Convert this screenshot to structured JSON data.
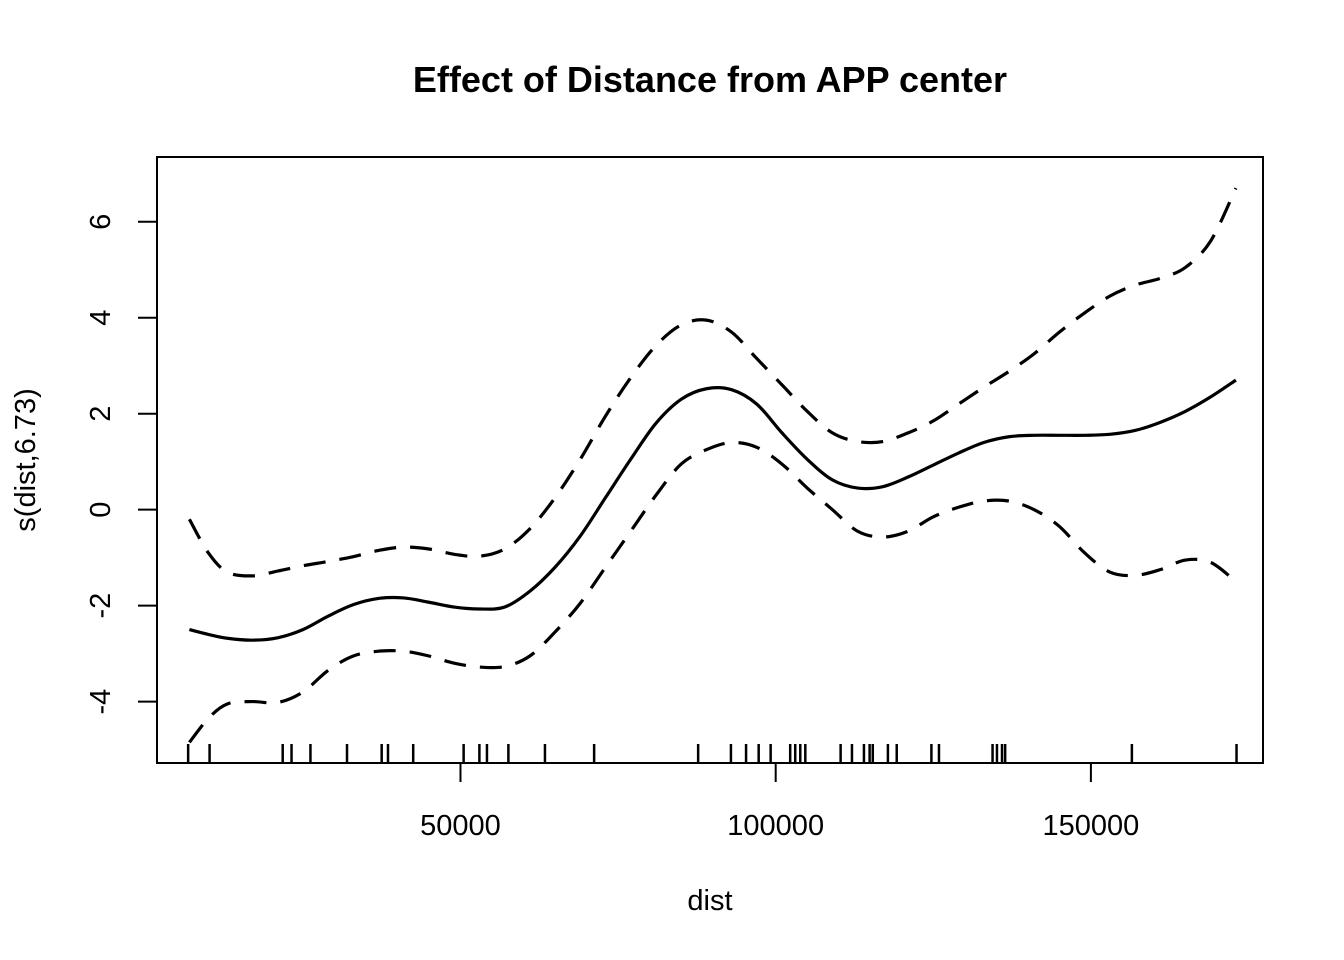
{
  "chart_data": {
    "type": "line",
    "title": "Effect of Distance from APP center",
    "xlabel": "dist",
    "ylabel": "s(dist,6.73)",
    "xlim": [
      1860,
      177300
    ],
    "ylim": [
      -5.28,
      7.35
    ],
    "x_ticks": [
      50000,
      100000,
      150000
    ],
    "x_tick_labels": [
      "50000",
      "100000",
      "150000"
    ],
    "y_ticks": [
      -4,
      -2,
      0,
      2,
      4,
      6
    ],
    "y_tick_labels": [
      "-4",
      "-2",
      "0",
      "2",
      "4",
      "6"
    ],
    "grid": false,
    "legend": "none",
    "series": [
      {
        "role": "estimate",
        "style": "solid",
        "x": [
          7000,
          10000,
          13000,
          17000,
          21000,
          25000,
          29000,
          33000,
          37000,
          41000,
          45000,
          49000,
          53000,
          57000,
          61000,
          65000,
          69000,
          73000,
          77000,
          81000,
          85000,
          89000,
          93000,
          97000,
          101000,
          105000,
          109000,
          113000,
          117000,
          121000,
          125000,
          129000,
          133000,
          137000,
          141000,
          145000,
          149000,
          153000,
          157000,
          161000,
          165000,
          169000,
          173000
        ],
        "y": [
          -2.5,
          -2.6,
          -2.68,
          -2.72,
          -2.67,
          -2.5,
          -2.22,
          -1.98,
          -1.85,
          -1.84,
          -1.93,
          -2.03,
          -2.07,
          -2.03,
          -1.7,
          -1.2,
          -0.55,
          0.25,
          1.05,
          1.8,
          2.3,
          2.52,
          2.5,
          2.2,
          1.6,
          1.05,
          0.62,
          0.45,
          0.48,
          0.68,
          0.93,
          1.18,
          1.4,
          1.52,
          1.55,
          1.55,
          1.55,
          1.57,
          1.65,
          1.82,
          2.05,
          2.35,
          2.7
        ]
      },
      {
        "role": "upper",
        "style": "dashed",
        "x": [
          7000,
          10000,
          13000,
          17000,
          21000,
          25000,
          29000,
          33000,
          37000,
          41000,
          45000,
          49000,
          53000,
          57000,
          61000,
          65000,
          69000,
          73000,
          77000,
          81000,
          85000,
          89000,
          93000,
          97000,
          101000,
          105000,
          109000,
          113000,
          117000,
          121000,
          125000,
          129000,
          133000,
          137000,
          141000,
          145000,
          149000,
          153000,
          157000,
          161000,
          165000,
          169000,
          173000
        ],
        "y": [
          -0.2,
          -0.9,
          -1.3,
          -1.38,
          -1.28,
          -1.17,
          -1.08,
          -0.98,
          -0.85,
          -0.78,
          -0.82,
          -0.93,
          -0.97,
          -0.82,
          -0.4,
          0.25,
          1.05,
          1.95,
          2.75,
          3.42,
          3.85,
          3.95,
          3.7,
          3.15,
          2.6,
          2.05,
          1.6,
          1.42,
          1.42,
          1.6,
          1.85,
          2.2,
          2.55,
          2.88,
          3.25,
          3.7,
          4.1,
          4.45,
          4.68,
          4.82,
          5.05,
          5.6,
          6.7
        ]
      },
      {
        "role": "lower",
        "style": "dashed",
        "x": [
          7000,
          10000,
          13000,
          17000,
          21000,
          25000,
          29000,
          33000,
          37000,
          41000,
          45000,
          49000,
          53000,
          57000,
          61000,
          65000,
          69000,
          73000,
          77000,
          81000,
          85000,
          89000,
          93000,
          97000,
          101000,
          105000,
          109000,
          113000,
          117000,
          121000,
          125000,
          129000,
          133000,
          137000,
          141000,
          145000,
          149000,
          153000,
          157000,
          161000,
          165000,
          169000,
          173000
        ],
        "y": [
          -4.85,
          -4.35,
          -4.05,
          -4.0,
          -4.02,
          -3.8,
          -3.35,
          -3.05,
          -2.95,
          -2.95,
          -3.05,
          -3.2,
          -3.28,
          -3.27,
          -3.05,
          -2.55,
          -1.95,
          -1.2,
          -0.45,
          0.3,
          0.95,
          1.25,
          1.4,
          1.3,
          0.95,
          0.45,
          0.0,
          -0.45,
          -0.57,
          -0.45,
          -0.15,
          0.05,
          0.18,
          0.18,
          0.0,
          -0.35,
          -0.9,
          -1.3,
          -1.37,
          -1.25,
          -1.05,
          -1.1,
          -1.5
        ]
      }
    ],
    "rug": [
      6800,
      10200,
      21800,
      23200,
      26200,
      32000,
      37500,
      38500,
      42500,
      50500,
      53000,
      54200,
      57600,
      63400,
      71200,
      87700,
      92900,
      95300,
      97300,
      99200,
      102300,
      103100,
      103900,
      104700,
      110300,
      112100,
      114000,
      114900,
      115400,
      117800,
      119200,
      124700,
      125900,
      134400,
      135100,
      135900,
      136400,
      156500,
      173100
    ]
  }
}
